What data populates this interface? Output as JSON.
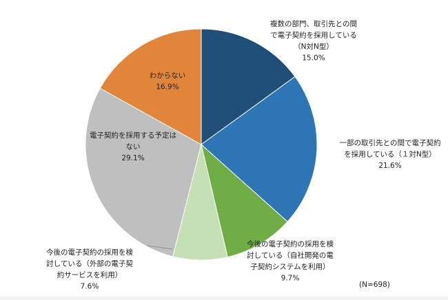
{
  "chart_data": {
    "type": "pie",
    "sample_note": "(N=698)",
    "slices": [
      {
        "label_lines": [
          "複数の部門、取引先との間",
          "で電子契約を採用している",
          "（N対N型）"
        ],
        "value": 15.0,
        "value_label": "15.0%",
        "color": "#1f4e79"
      },
      {
        "label_lines": [
          "一部の取引先との間で電子契約",
          "を採用している（１対N型）"
        ],
        "value": 21.6,
        "value_label": "21.6%",
        "color": "#2e75b6"
      },
      {
        "label_lines": [
          "今後の電子契約の採用を検",
          "討している（自社開発の電",
          "子契約システムを利用）"
        ],
        "value": 9.7,
        "value_label": "9.7%",
        "color": "#70ad47"
      },
      {
        "label_lines": [
          "今後の電子契約の採用を検",
          "討している（外部の電子契",
          "約サービスを利用）"
        ],
        "value": 7.6,
        "value_label": "7.6%",
        "color": "#c5e0b4"
      },
      {
        "label_lines": [
          "電子契約を採用する予定は",
          "ない"
        ],
        "value": 29.1,
        "value_label": "29.1%",
        "color": "#bfbfbf"
      },
      {
        "label_lines": [
          "わからない"
        ],
        "value": 16.9,
        "value_label": "16.9%",
        "color": "#e0853a"
      }
    ]
  }
}
